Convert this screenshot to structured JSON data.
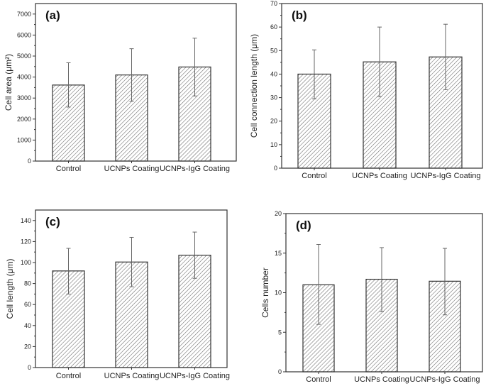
{
  "chart_data": [
    {
      "type": "bar",
      "panel_label": "(a)",
      "categories": [
        "Control",
        "UCNPs Coating",
        "UCNPs-IgG Coating"
      ],
      "values": [
        3620,
        4100,
        4480
      ],
      "error_low": [
        2570,
        2850,
        3100
      ],
      "error_high": [
        4680,
        5350,
        5850
      ],
      "ylabel": "Cell area (μm²)",
      "ylim": [
        0,
        7500
      ],
      "yticks": [
        0,
        1000,
        2000,
        3000,
        4000,
        5000,
        6000,
        7000
      ],
      "fill": "hatched diagonal",
      "grid": false
    },
    {
      "type": "bar",
      "panel_label": "(b)",
      "categories": [
        "Control",
        "UCNPs Coating",
        "UCNPs-IgG Coating"
      ],
      "values": [
        40,
        45.2,
        47.3
      ],
      "error_low": [
        29.5,
        30.4,
        33.4
      ],
      "error_high": [
        50.3,
        60,
        61.2
      ],
      "ylabel": "Cell connection length (μm)",
      "ylim": [
        0,
        70
      ],
      "yticks": [
        0,
        10,
        20,
        30,
        40,
        50,
        60,
        70
      ],
      "fill": "hatched diagonal",
      "grid": false
    },
    {
      "type": "bar",
      "panel_label": "(c)",
      "categories": [
        "Control",
        "UCNPs Coating",
        "UCNPs-IgG Coating"
      ],
      "values": [
        92,
        100.5,
        107
      ],
      "error_low": [
        70,
        77,
        85
      ],
      "error_high": [
        113.5,
        124,
        129
      ],
      "ylabel": "Cell length (μm)",
      "ylim": [
        0,
        150
      ],
      "yticks": [
        0,
        20,
        40,
        60,
        80,
        100,
        120,
        140
      ],
      "fill": "hatched diagonal",
      "grid": false
    },
    {
      "type": "bar",
      "panel_label": "(d)",
      "categories": [
        "Control",
        "UCNPs Coating",
        "UCNPs-IgG Coating"
      ],
      "values": [
        11,
        11.7,
        11.45
      ],
      "error_low": [
        6,
        7.6,
        7.2
      ],
      "error_high": [
        16.1,
        15.7,
        15.6
      ],
      "ylabel": "Cells number",
      "ylim": [
        0,
        20
      ],
      "yticks": [
        0,
        5,
        10,
        15,
        20
      ],
      "fill": "hatched diagonal",
      "grid": false
    }
  ],
  "colors": {
    "bar_edge": "#333333",
    "hatch": "#555555",
    "error_bar": "#666666",
    "axis": "#333333"
  }
}
